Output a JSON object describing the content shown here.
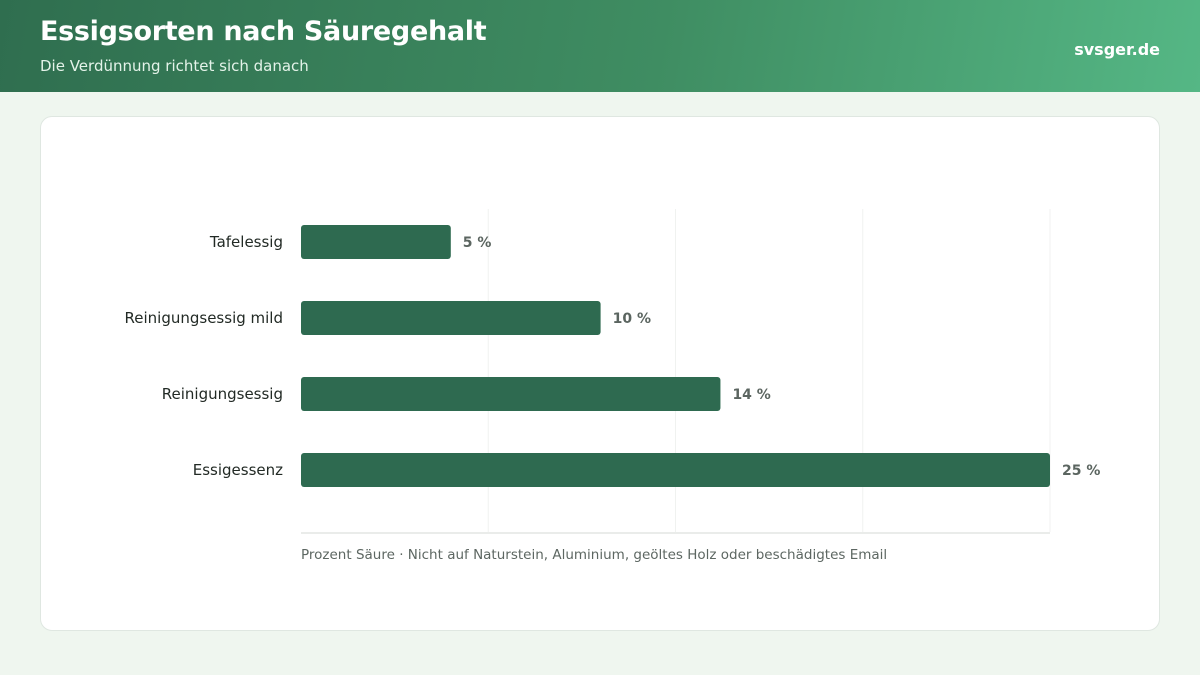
{
  "header": {
    "title": "Essigsorten nach Säuregehalt",
    "subtitle": "Die Verdünnung richtet sich danach",
    "brand": "svsger.de"
  },
  "colors": {
    "bar": "#2e6a50",
    "header_start": "#2f6e4f",
    "header_end": "#55b785",
    "background": "#eff6ef"
  },
  "chart_data": {
    "type": "bar",
    "orientation": "horizontal",
    "categories": [
      "Tafelessig",
      "Reinigungsessig mild",
      "Reinigungsessig",
      "Essigessenz"
    ],
    "values": [
      5,
      10,
      14,
      25
    ],
    "value_labels": [
      "5 %",
      "10 %",
      "14 %",
      "25 %"
    ],
    "xlabel": "Prozent Säure · Nicht auf Naturstein, Aluminium, geöltes Holz oder beschädigtes Email",
    "xlim": [
      0,
      25
    ],
    "grid": true
  }
}
